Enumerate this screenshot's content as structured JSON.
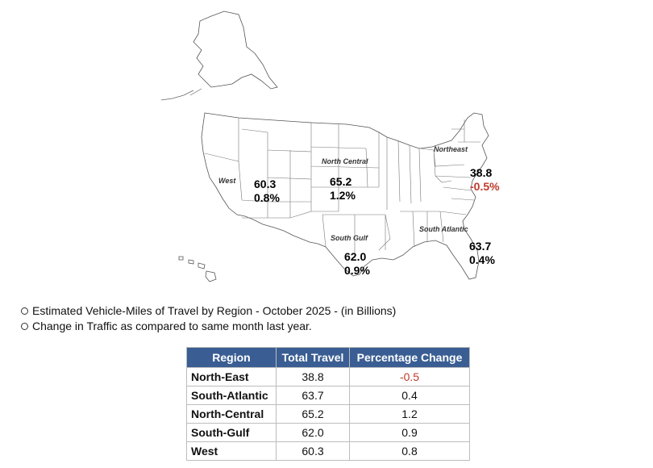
{
  "map": {
    "regions": [
      {
        "label": "West",
        "total": "60.3",
        "change": "0.8%",
        "negative": false
      },
      {
        "label": "North Central",
        "total": "65.2",
        "change": "1.2%",
        "negative": false
      },
      {
        "label": "Northeast",
        "total": "38.8",
        "change": "-0.5%",
        "negative": true
      },
      {
        "label": "South Gulf",
        "total": "62.0",
        "change": "0.9%",
        "negative": false
      },
      {
        "label": "South Atlantic",
        "total": "63.7",
        "change": "0.4%",
        "negative": false
      }
    ]
  },
  "bullets": {
    "line1": "Estimated Vehicle-Miles of Travel by Region - October 2025 - (in Billions)",
    "line2": "Change in Traffic as compared to same month last year."
  },
  "table": {
    "headers": [
      "Region",
      "Total Travel",
      "Percentage Change"
    ],
    "rows": [
      [
        "North-East",
        "38.8",
        "-0.5"
      ],
      [
        "South-Atlantic",
        "63.7",
        "0.4"
      ],
      [
        "North-Central",
        "65.2",
        "1.2"
      ],
      [
        "South-Gulf",
        "62.0",
        "0.9"
      ],
      [
        "West",
        "60.3",
        "0.8"
      ]
    ],
    "negative_color": "#c0392b",
    "header_bg": "#3a5e93"
  }
}
